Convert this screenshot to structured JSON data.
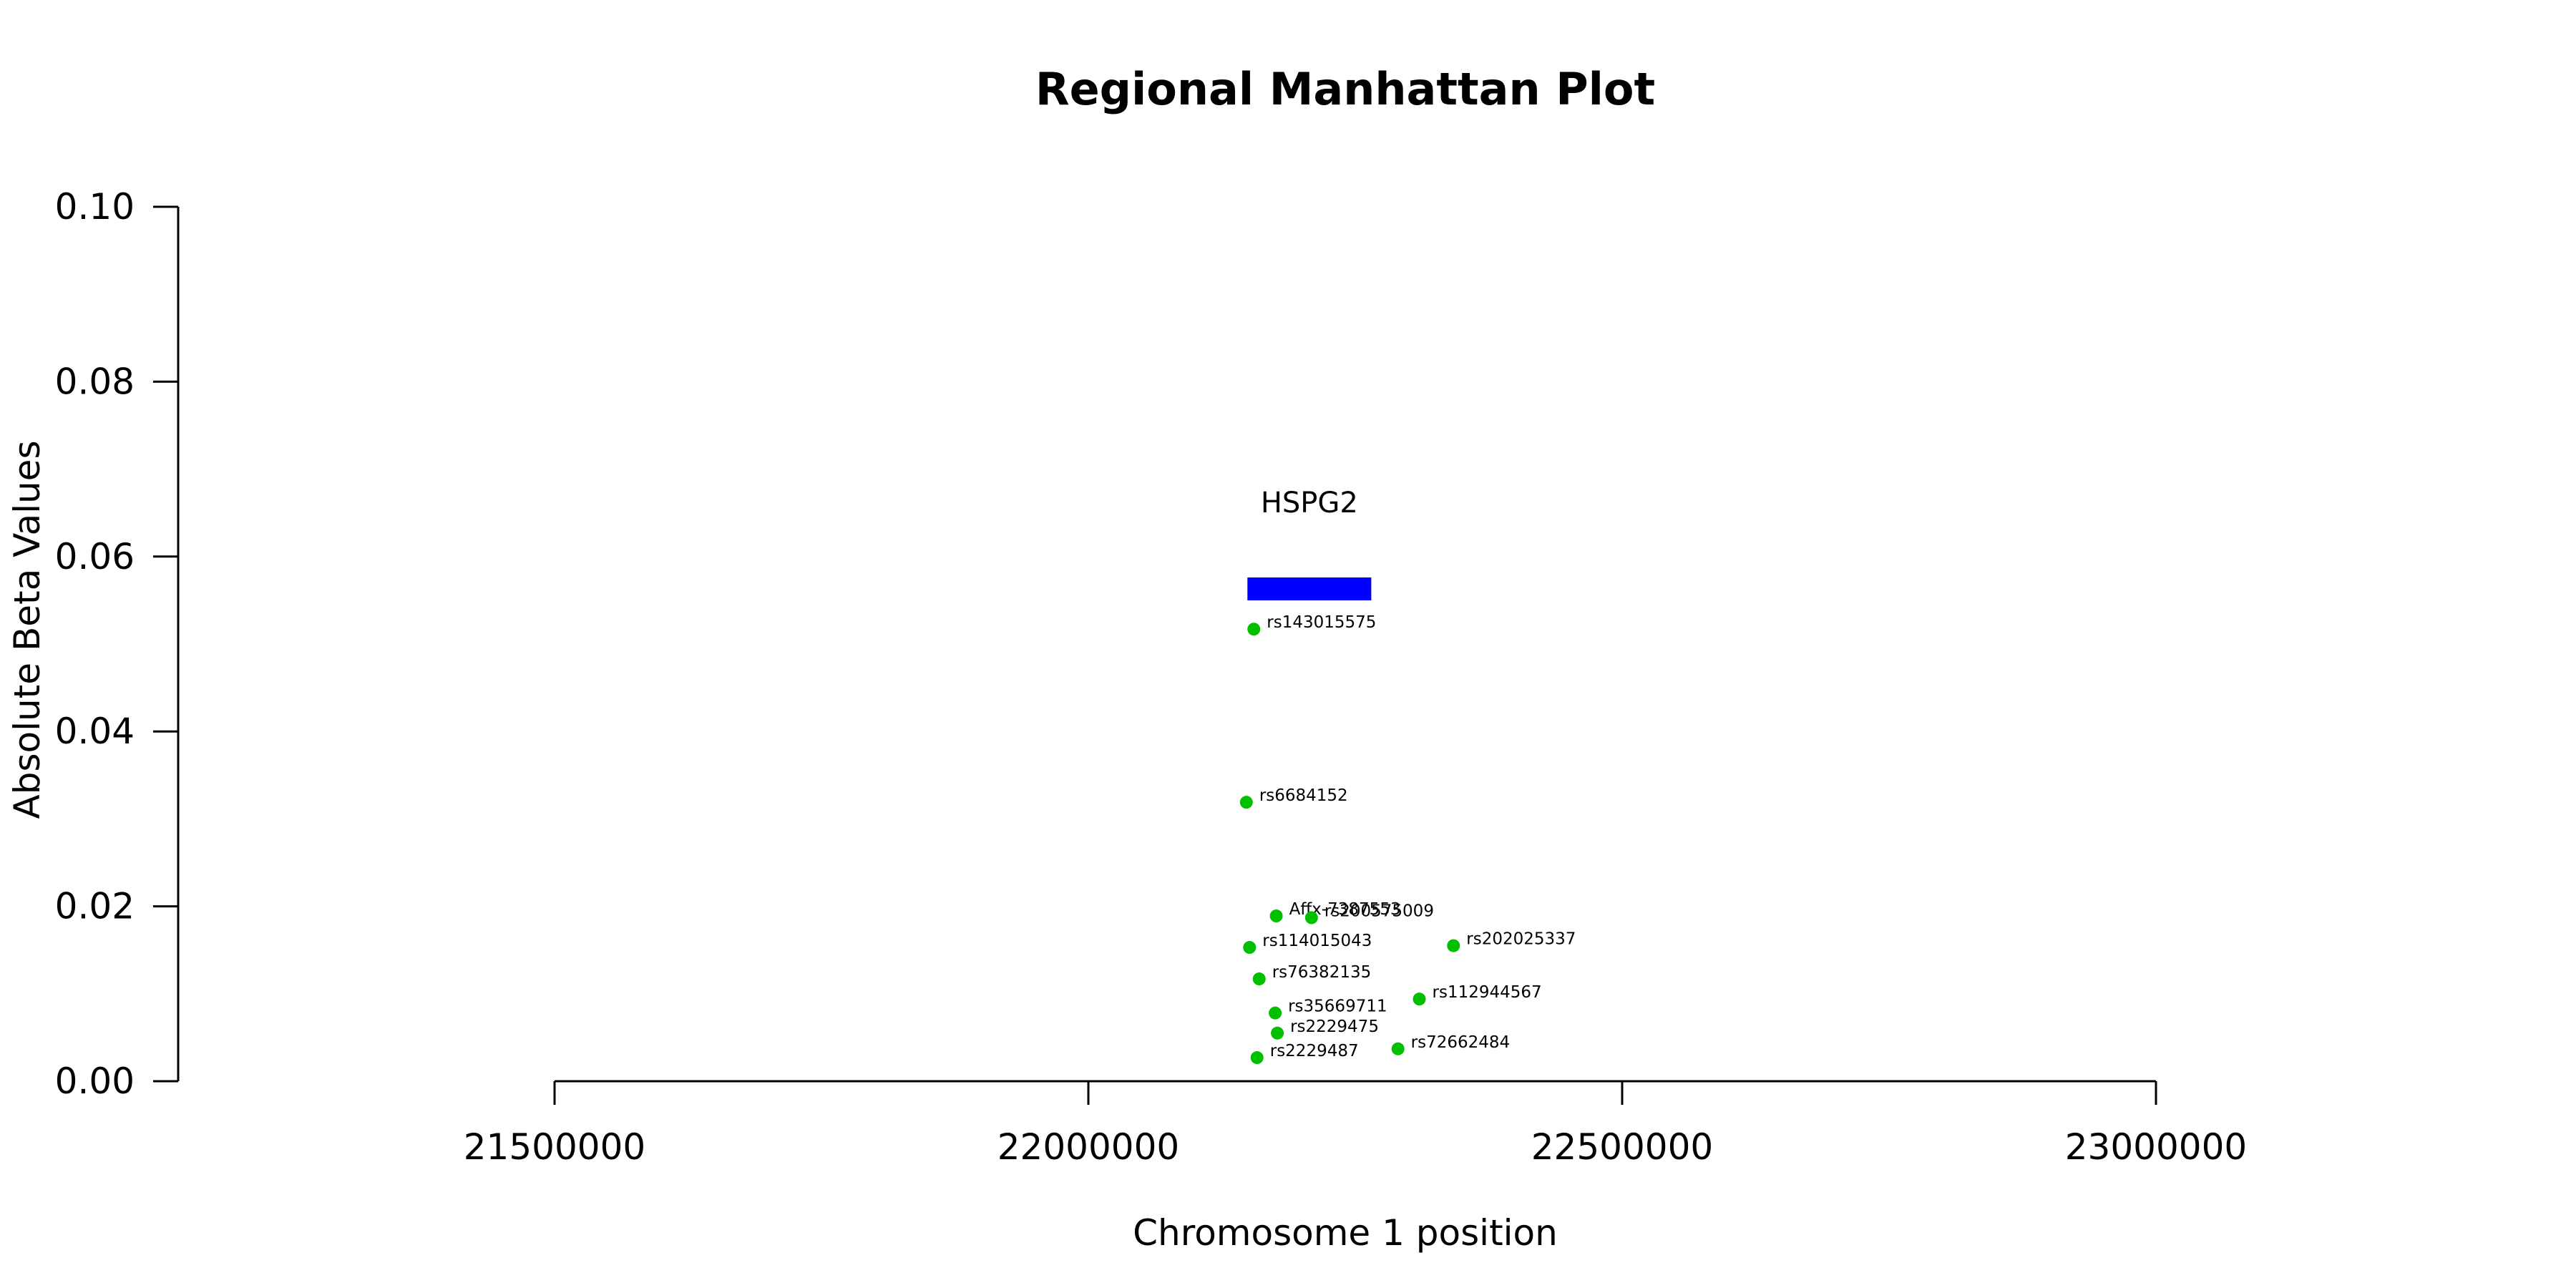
{
  "chart_data": {
    "type": "scatter",
    "title": "Regional Manhattan Plot",
    "xlabel": "Chromosome 1 position",
    "ylabel": "Absolute Beta Values",
    "xlim": [
      21150000,
      23200000
    ],
    "ylim": [
      0,
      0.1
    ],
    "x_ticks": [
      21500000,
      22000000,
      22500000,
      23000000
    ],
    "y_ticks": [
      0.0,
      0.02,
      0.04,
      0.06,
      0.08,
      0.1
    ],
    "y_tick_labels": [
      "0.00",
      "0.02",
      "0.04",
      "0.06",
      "0.08",
      "0.10"
    ],
    "x_tick_labels": [
      "21500000",
      "22000000",
      "22500000",
      "23000000"
    ],
    "grid": false,
    "point_color": "#00c000",
    "gene": {
      "name": "HSPG2",
      "start": 22149000,
      "end": 22265000,
      "y": 0.0563,
      "color": "#0000ff"
    },
    "points": [
      {
        "label": "rs143015575",
        "x": 22155000,
        "y": 0.0517
      },
      {
        "label": "rs6684152",
        "x": 22148000,
        "y": 0.0319
      },
      {
        "label": "Affx-7387553",
        "x": 22176000,
        "y": 0.0189
      },
      {
        "label": "rs200575009",
        "x": 22209000,
        "y": 0.0187
      },
      {
        "label": "rs114015043",
        "x": 22151000,
        "y": 0.0153
      },
      {
        "label": "rs202025337",
        "x": 22342000,
        "y": 0.0155
      },
      {
        "label": "rs76382135",
        "x": 22160000,
        "y": 0.0117
      },
      {
        "label": "rs112944567",
        "x": 22310000,
        "y": 0.0094
      },
      {
        "label": "rs35669711",
        "x": 22175000,
        "y": 0.0078
      },
      {
        "label": "rs2229475",
        "x": 22177000,
        "y": 0.0055
      },
      {
        "label": "rs72662484",
        "x": 22290000,
        "y": 0.0037
      },
      {
        "label": "rs2229487",
        "x": 22158000,
        "y": 0.0027
      }
    ]
  }
}
